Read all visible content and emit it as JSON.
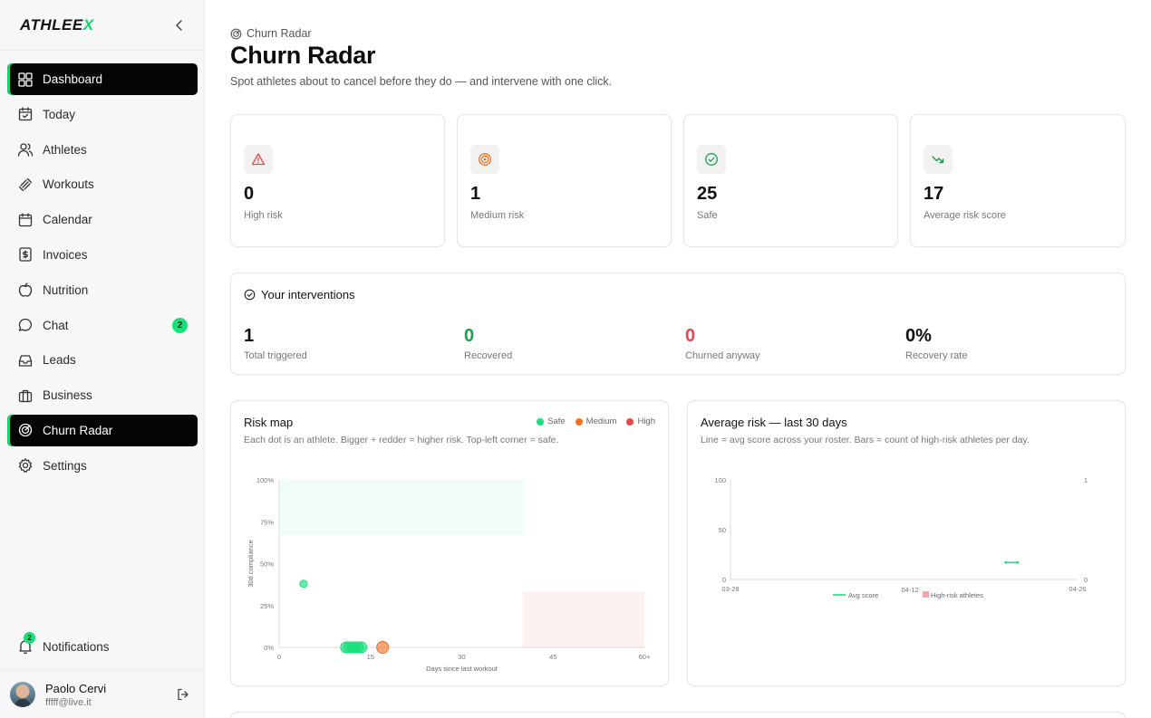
{
  "brand": {
    "name_main": "ATHLEE",
    "name_accent": "X"
  },
  "sidebar": {
    "items": [
      {
        "key": "dashboard",
        "label": "Dashboard",
        "icon": "grid-icon",
        "active": true
      },
      {
        "key": "today",
        "label": "Today",
        "icon": "calendar-check-icon"
      },
      {
        "key": "athletes",
        "label": "Athletes",
        "icon": "users-icon"
      },
      {
        "key": "workouts",
        "label": "Workouts",
        "icon": "dumbbell-icon"
      },
      {
        "key": "calendar",
        "label": "Calendar",
        "icon": "calendar-icon"
      },
      {
        "key": "invoices",
        "label": "Invoices",
        "icon": "invoice-icon"
      },
      {
        "key": "nutrition",
        "label": "Nutrition",
        "icon": "apple-icon"
      },
      {
        "key": "chat",
        "label": "Chat",
        "icon": "chat-icon",
        "badge": "2"
      },
      {
        "key": "leads",
        "label": "Leads",
        "icon": "inbox-icon"
      },
      {
        "key": "business",
        "label": "Business",
        "icon": "briefcase-icon"
      },
      {
        "key": "churn-radar",
        "label": "Churn Radar",
        "icon": "radar-icon",
        "active": true
      },
      {
        "key": "settings",
        "label": "Settings",
        "icon": "gear-icon"
      }
    ],
    "notifications": {
      "label": "Notifications",
      "badge": "2"
    },
    "user": {
      "name": "Paolo Cervi",
      "email": "fffff@live.it"
    }
  },
  "page": {
    "breadcrumb": "Churn Radar",
    "title": "Churn Radar",
    "subtitle": "Spot athletes about to cancel before they do — and intervene with one click."
  },
  "stats": [
    {
      "value": "0",
      "label": "High risk",
      "icon": "alert-triangle-icon",
      "color": "#e5484d"
    },
    {
      "value": "1",
      "label": "Medium risk",
      "icon": "target-icon",
      "color": "#f5701f"
    },
    {
      "value": "25",
      "label": "Safe",
      "icon": "check-circle-icon",
      "color": "#16a34a"
    },
    {
      "value": "17",
      "label": "Average risk score",
      "icon": "trending-down-icon",
      "color": "#16a34a"
    }
  ],
  "interventions": {
    "title": "Your interventions",
    "metrics": [
      {
        "value": "1",
        "label": "Total triggered",
        "color": "#111111"
      },
      {
        "value": "0",
        "label": "Recovered",
        "color": "#16a34a"
      },
      {
        "value": "0",
        "label": "Churned anyway",
        "color": "#e5484d"
      },
      {
        "value": "0%",
        "label": "Recovery rate",
        "color": "#111111"
      }
    ]
  },
  "risk_map": {
    "title": "Risk map",
    "description": "Each dot is an athlete. Bigger + redder = higher risk. Top-left corner = safe.",
    "legend": [
      {
        "label": "Safe",
        "color": "#19e07a"
      },
      {
        "label": "Medium",
        "color": "#f5701f"
      },
      {
        "label": "High",
        "color": "#e5484d"
      }
    ]
  },
  "avg_risk": {
    "title": "Average risk — last 30 days",
    "description": "Line = avg score across your roster. Bars = count of high-risk athletes per day."
  },
  "chart_data": [
    {
      "type": "scatter",
      "xlabel": "Days since last workout",
      "ylabel": "30d compliance",
      "x_ticks": [
        "0",
        "15",
        "30",
        "45",
        "60+"
      ],
      "y_ticks": [
        "0%",
        "25%",
        "50%",
        "75%",
        "100%"
      ],
      "xlim": [
        0,
        60
      ],
      "ylim": [
        0,
        100
      ],
      "points": [
        {
          "x": 4,
          "y": 38,
          "level": "safe"
        },
        {
          "x": 11,
          "y": 0,
          "level": "safe"
        },
        {
          "x": 11.5,
          "y": 0,
          "level": "safe"
        },
        {
          "x": 12,
          "y": 0,
          "level": "safe"
        },
        {
          "x": 12.5,
          "y": 0,
          "level": "safe"
        },
        {
          "x": 13,
          "y": 0,
          "level": "safe"
        },
        {
          "x": 13.5,
          "y": 0,
          "level": "safe"
        },
        {
          "x": 17,
          "y": 0,
          "level": "medium"
        }
      ]
    },
    {
      "type": "line",
      "x_ticks": [
        "03-28",
        "04-12",
        "04-26"
      ],
      "y_left_ticks": [
        "0",
        "50",
        "100"
      ],
      "y_right_ticks": [
        "0",
        "1"
      ],
      "ylim": [
        0,
        100
      ],
      "ylim_right": [
        0,
        1
      ],
      "series": [
        {
          "name": "Avg score",
          "color": "#19e07a",
          "values": [
            {
              "date": "04-20",
              "value": 17
            },
            {
              "date": "04-21",
              "value": 17
            }
          ]
        },
        {
          "name": "High-risk athletes",
          "color": "#f6a5a8",
          "values": []
        }
      ]
    }
  ]
}
